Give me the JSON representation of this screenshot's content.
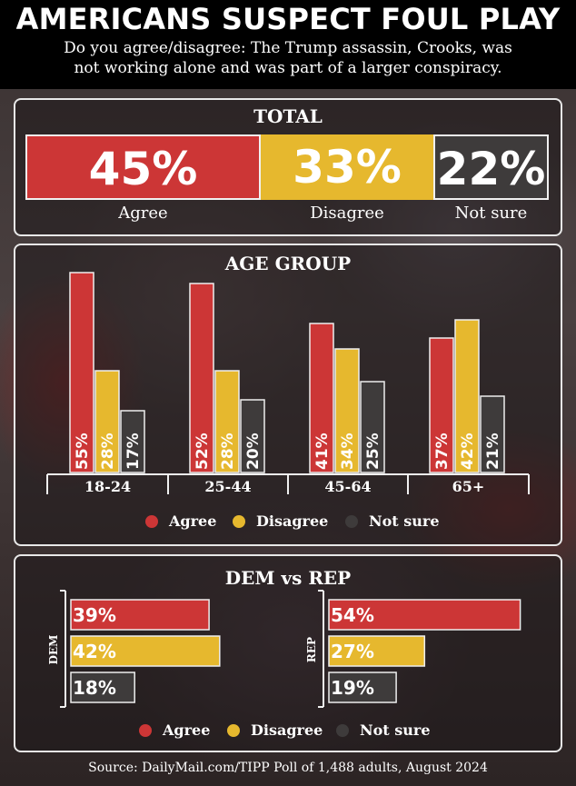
{
  "header": {
    "title": "AMERICANS SUSPECT FOUL PLAY",
    "subtitle_line1": "Do you agree/disagree: The Trump assassin, Crooks, was",
    "subtitle_line2": "not working alone and was part of a larger conspiracy."
  },
  "colors": {
    "agree": "#cc3636",
    "disagree": "#e6b82e",
    "not_sure": "#3e3b3b"
  },
  "legend": {
    "agree": "Agree",
    "disagree": "Disagree",
    "not_sure": "Not sure"
  },
  "source": "Source: DailyMail.com/TIPP Poll of 1,488 adults, August 2024",
  "chart_data": [
    {
      "type": "bar",
      "title": "TOTAL",
      "categories": [
        "Agree",
        "Disagree",
        "Not sure"
      ],
      "values": [
        45,
        33,
        22
      ],
      "value_labels": [
        "45%",
        "33%",
        "22%"
      ],
      "orientation": "stacked-horizontal"
    },
    {
      "type": "bar",
      "title": "AGE GROUP",
      "categories": [
        "18-24",
        "25-44",
        "45-64",
        "65+"
      ],
      "series": [
        {
          "name": "Agree",
          "values": [
            55,
            52,
            41,
            37
          ]
        },
        {
          "name": "Disagree",
          "values": [
            28,
            28,
            34,
            42
          ]
        },
        {
          "name": "Not sure",
          "values": [
            17,
            20,
            25,
            21
          ]
        }
      ],
      "legend_position": "bottom"
    },
    {
      "type": "bar",
      "title": "DEM vs REP",
      "orientation": "horizontal",
      "categories": [
        "DEM",
        "REP"
      ],
      "series": [
        {
          "name": "Agree",
          "values": [
            39,
            54
          ]
        },
        {
          "name": "Disagree",
          "values": [
            42,
            27
          ]
        },
        {
          "name": "Not sure",
          "values": [
            18,
            19
          ]
        }
      ],
      "legend_position": "bottom"
    }
  ]
}
